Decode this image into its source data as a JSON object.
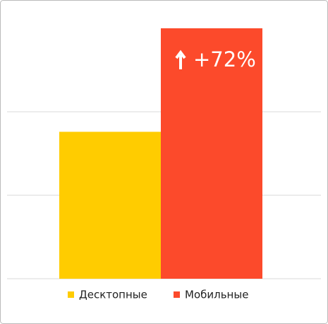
{
  "chart_data": {
    "type": "bar",
    "series": [
      {
        "name": "Десктопные",
        "color": "#ffcc00",
        "values": [
          1.76
        ]
      },
      {
        "name": "Мобильные",
        "color": "#fc4a2b",
        "values": [
          3.0
        ]
      }
    ],
    "annotation": "+72%",
    "ylim": [
      0,
      3
    ],
    "yticks": [
      0,
      1,
      2
    ],
    "grid": true
  }
}
